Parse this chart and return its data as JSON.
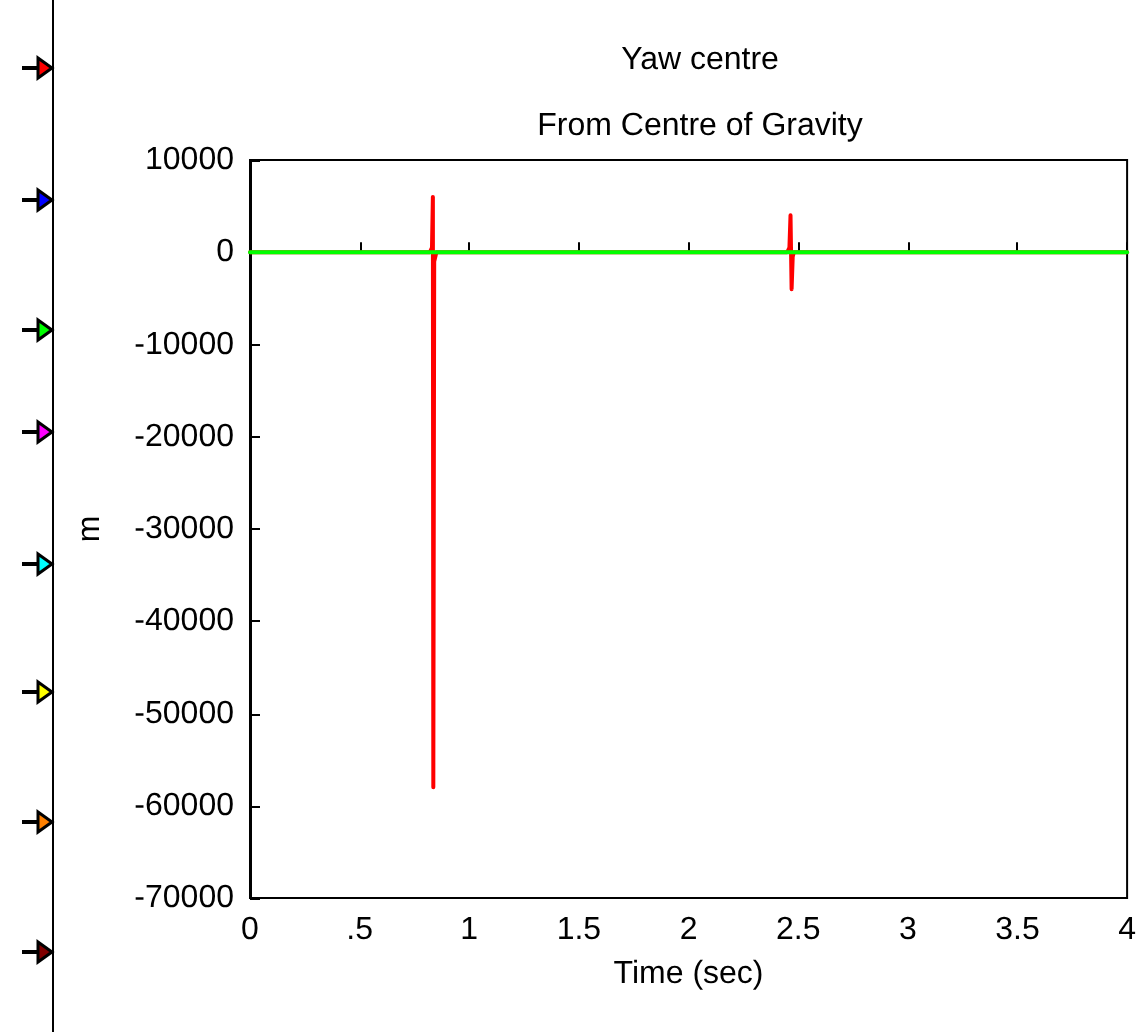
{
  "chart_data": {
    "type": "line",
    "title": "Yaw centre",
    "subtitle": "From Centre of Gravity",
    "xlabel": "Time (sec)",
    "ylabel": "m",
    "xlim": [
      0,
      4
    ],
    "xticks": [
      0,
      {
        "value": 0.5,
        "label": ".5"
      },
      1,
      1.5,
      2,
      2.5,
      3,
      3.5,
      4
    ],
    "ylim": [
      -70000,
      10000
    ],
    "yticks": [
      -70000,
      -60000,
      -50000,
      -40000,
      -30000,
      -20000,
      -10000,
      0,
      10000
    ],
    "grid": false,
    "marker": "none",
    "line_style": "solid",
    "series": [
      {
        "color": "#ff0000",
        "x": [
          0,
          0.82,
          0.83,
          0.834,
          0.836,
          0.84,
          0.85,
          2.45,
          2.46,
          2.465,
          2.47,
          2.475,
          2.48,
          4
        ],
        "values": [
          0,
          0,
          500,
          6000,
          -58000,
          -1000,
          0,
          0,
          500,
          4000,
          -4000,
          -500,
          0,
          0
        ]
      },
      {
        "color": "#00ff00",
        "x": [
          0,
          4
        ],
        "values": [
          0,
          0
        ]
      }
    ]
  }
}
